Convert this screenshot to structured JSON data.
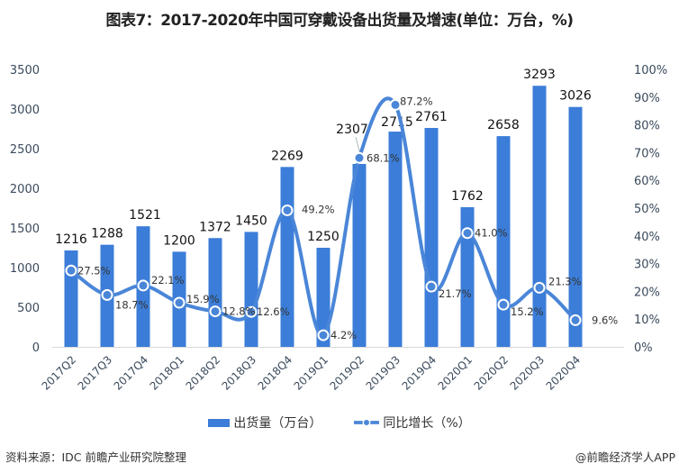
{
  "title": "图表7：2017-2020年中国可穿戴设备出货量及增速(单位：万台，%)",
  "legend": {
    "bar_label": "出货量（万台）",
    "line_label": "同比增长（%）"
  },
  "footer": {
    "source": "资料来源：IDC 前瞻产业研究院整理",
    "credit": "@前瞻经济学人APP"
  },
  "colors": {
    "bar": "#3b7dd8",
    "line": "#4a86d8",
    "marker_ring": "#ffffff"
  },
  "chart_data": {
    "type": "bar+line",
    "title": "图表7：2017-2020年中国可穿戴设备出货量及增速(单位：万台，%)",
    "categories": [
      "2017Q2",
      "2017Q3",
      "2017Q4",
      "2018Q1",
      "2018Q2",
      "2018Q3",
      "2018Q4",
      "2019Q1",
      "2019Q2",
      "2019Q3",
      "2019Q4",
      "2020Q1",
      "2020Q2",
      "2020Q3",
      "2020Q4"
    ],
    "series": [
      {
        "name": "出货量（万台）",
        "type": "bar",
        "axis": "left",
        "values": [
          1216,
          1288,
          1521,
          1200,
          1372,
          1450,
          2269,
          1250,
          2307,
          2715,
          2761,
          1762,
          2658,
          3293,
          3026
        ]
      },
      {
        "name": "同比增长（%）",
        "type": "line",
        "axis": "right",
        "values": [
          27.5,
          18.7,
          22.1,
          15.9,
          12.8,
          12.6,
          49.2,
          4.2,
          68.1,
          87.2,
          21.7,
          41.0,
          15.2,
          21.3,
          9.6
        ]
      }
    ],
    "left_axis": {
      "ylim": [
        0,
        3500
      ],
      "ticks": [
        "0",
        "500",
        "1000",
        "1500",
        "2000",
        "2500",
        "3000",
        "3500"
      ]
    },
    "right_axis": {
      "ylim": [
        0,
        100
      ],
      "ticks": [
        "0%",
        "10%",
        "20%",
        "30%",
        "40%",
        "50%",
        "60%",
        "70%",
        "80%",
        "90%",
        "100%"
      ]
    },
    "xlabel": "",
    "ylabel": "",
    "grid": false,
    "legend_position": "bottom"
  }
}
